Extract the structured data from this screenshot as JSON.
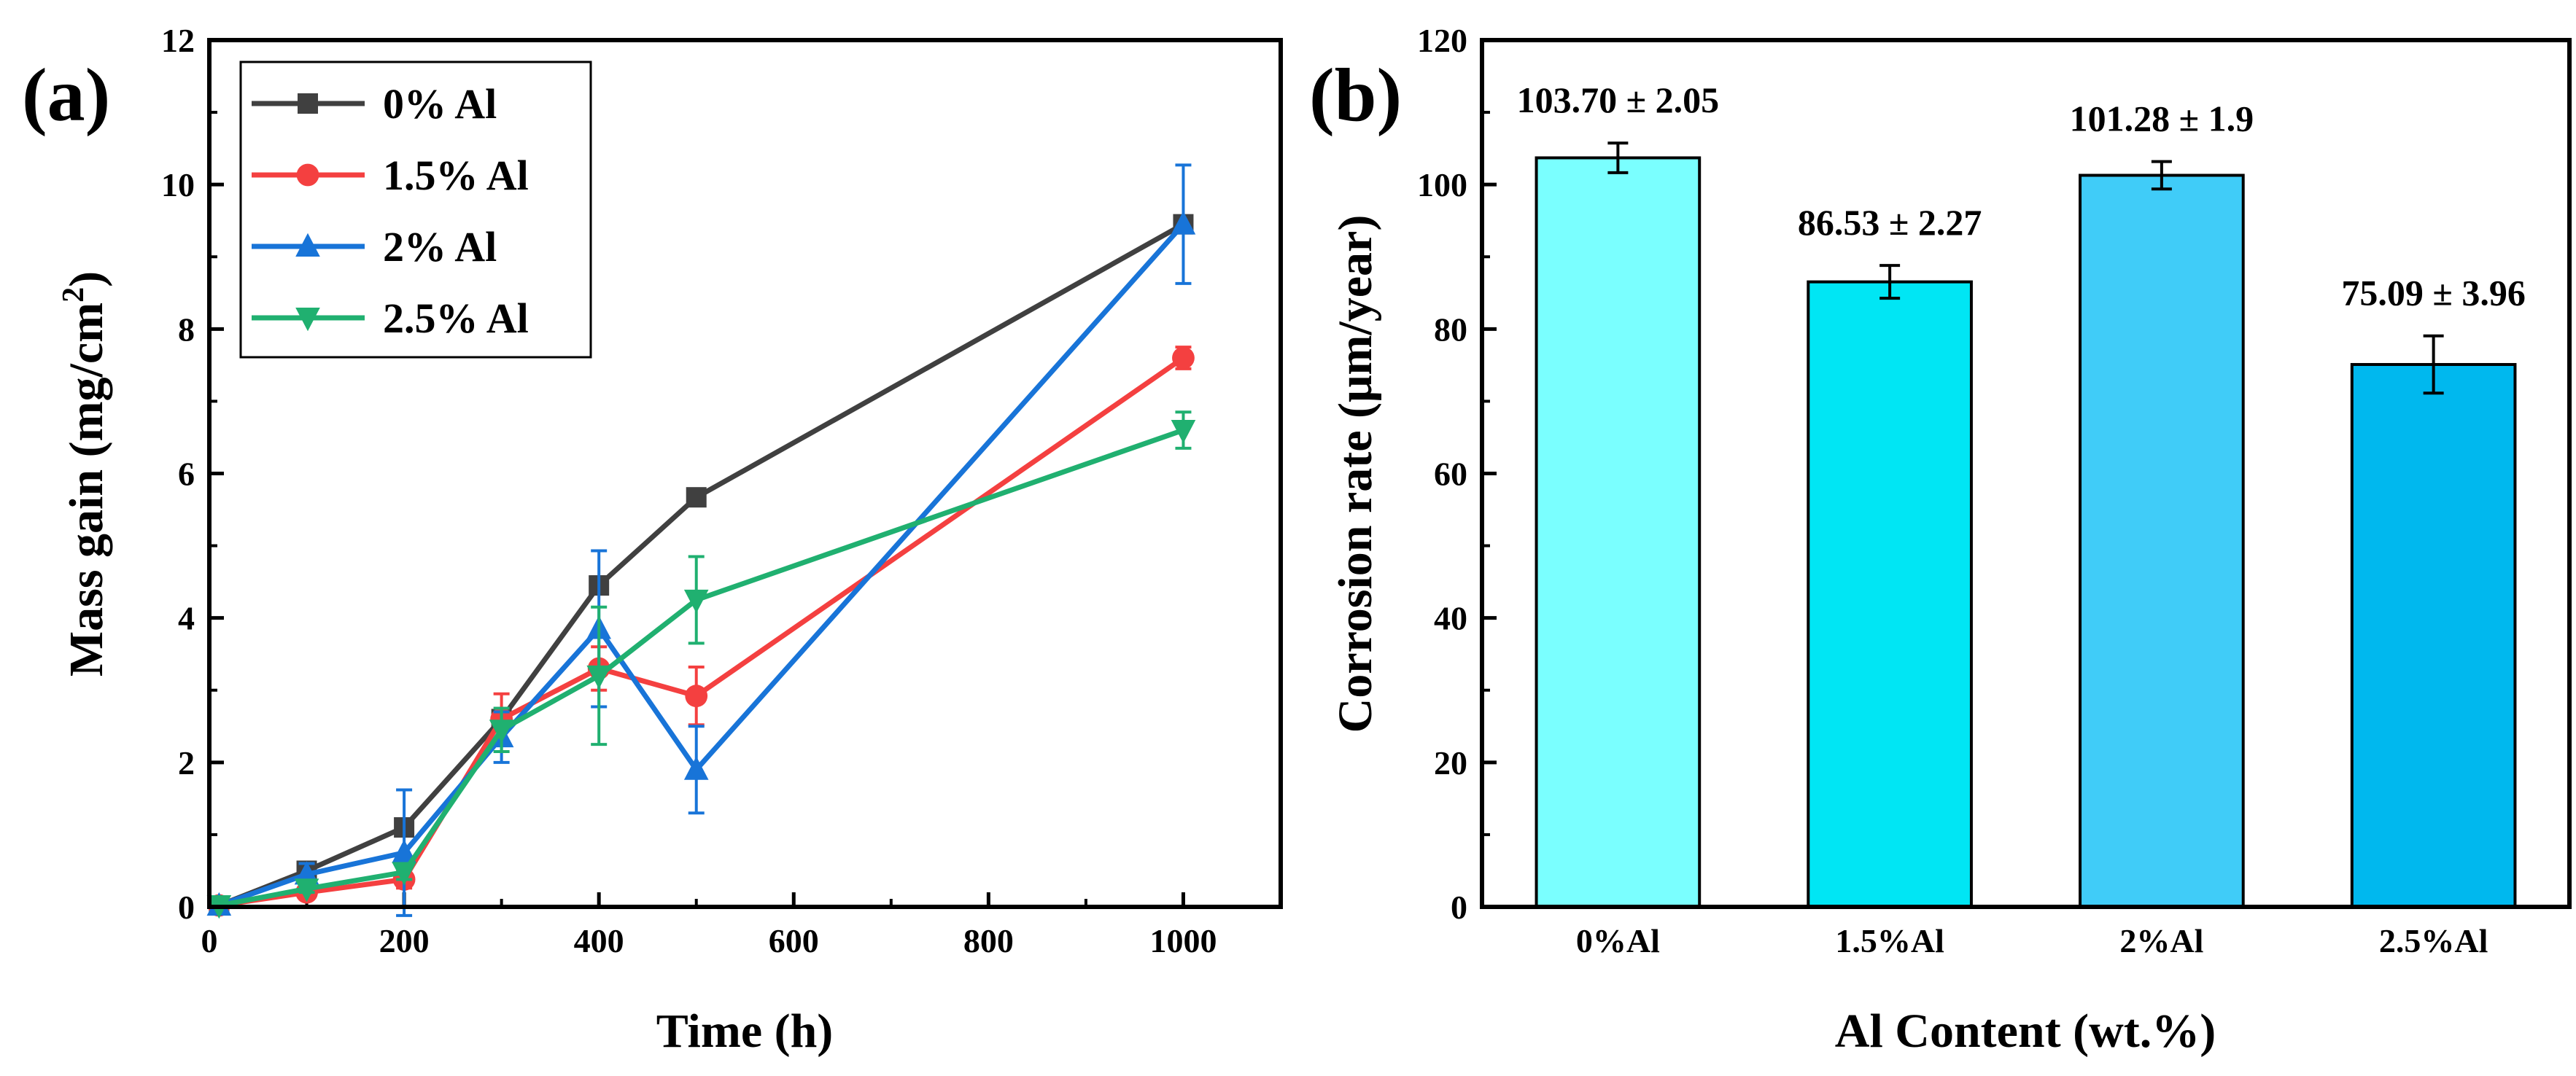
{
  "charts": [
    {
      "panel_label": "(a)",
      "chart_data": {
        "type": "line",
        "title": "",
        "xlabel": "Time (h)",
        "ylabel": "Mass gain (mg/cm",
        "ylabel_superscript": "2",
        "ylabel_suffix": ")",
        "xlim": [
          0,
          1100
        ],
        "ylim": [
          0,
          12
        ],
        "xticks": [
          0,
          200,
          400,
          600,
          800,
          1000
        ],
        "yticks": [
          0,
          2,
          4,
          6,
          8,
          10,
          12
        ],
        "legend_position": "top-left",
        "series": [
          {
            "name": "0% Al",
            "color": "#404040",
            "marker": "square",
            "x": [
              10,
              100,
              200,
              300,
              400,
              500,
              1000
            ],
            "y": [
              0.02,
              0.5,
              1.1,
              2.6,
              4.45,
              5.67,
              9.45
            ],
            "err": [
              0,
              0,
              0,
              0,
              0.12,
              0.08,
              0.1
            ]
          },
          {
            "name": "1.5% Al",
            "color": "#f44040",
            "marker": "circle",
            "x": [
              10,
              100,
              200,
              300,
              400,
              500,
              1000
            ],
            "y": [
              0.02,
              0.2,
              0.38,
              2.6,
              3.3,
              2.92,
              7.6
            ],
            "err": [
              0,
              0.05,
              0.12,
              0.35,
              0.3,
              0.4,
              0.15
            ]
          },
          {
            "name": "2% Al",
            "color": "#1874d8",
            "marker": "triangle-up",
            "x": [
              10,
              100,
              200,
              300,
              400,
              500,
              1000
            ],
            "y": [
              0.02,
              0.45,
              0.75,
              2.35,
              3.85,
              1.9,
              9.45
            ],
            "err": [
              0,
              0.15,
              0.87,
              0.35,
              1.08,
              0.6,
              0.82
            ]
          },
          {
            "name": "2.5% Al",
            "color": "#20b070",
            "marker": "triangle-down",
            "x": [
              10,
              100,
              200,
              300,
              400,
              500,
              1000
            ],
            "y": [
              0.02,
              0.25,
              0.48,
              2.45,
              3.2,
              4.25,
              6.6
            ],
            "err": [
              0,
              0.05,
              0.1,
              0.3,
              0.95,
              0.6,
              0.25
            ]
          }
        ]
      }
    },
    {
      "panel_label": "(b)",
      "chart_data": {
        "type": "bar",
        "title": "",
        "xlabel": "Al Content (wt.%)",
        "ylabel": "Corrosion rate (μm/year)",
        "ylim": [
          0,
          120
        ],
        "yticks": [
          0,
          20,
          40,
          60,
          80,
          100,
          120
        ],
        "categories": [
          "0%Al",
          "1.5%Al",
          "2%Al",
          "2.5%Al"
        ],
        "values": [
          103.7,
          86.53,
          101.28,
          75.09
        ],
        "errors": [
          2.05,
          2.27,
          1.9,
          3.96
        ],
        "data_labels": [
          "103.70 ± 2.05",
          "86.53 ± 2.27",
          "101.28 ± 1.9",
          "75.09 ± 3.96"
        ],
        "bar_colors": [
          "#7affff",
          "#00e6f4",
          "#40ccf8",
          "#00b8ee"
        ]
      }
    }
  ]
}
